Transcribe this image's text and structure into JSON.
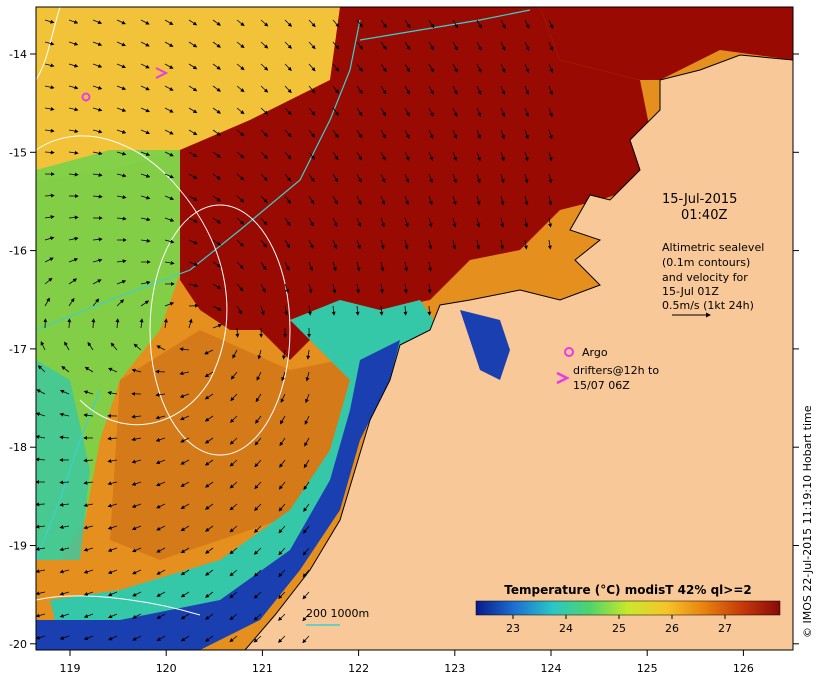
{
  "map": {
    "lon_ticks": [
      "119",
      "120",
      "121",
      "122",
      "123",
      "124",
      "125",
      "126"
    ],
    "lat_ticks": [
      "-14",
      "-15",
      "-16",
      "-17",
      "-18",
      "-19",
      "-20"
    ],
    "timestamp": {
      "date": "15-Jul-2015",
      "time": "01:40Z"
    },
    "altimetry": {
      "line1": "Altimetric sealevel",
      "line2": "(0.1m contours)",
      "line3": "and velocity for",
      "line4": "15-Jul 01Z",
      "scale": "0.5m/s (1kt 24h)"
    },
    "argo_label": "Argo",
    "drifters": {
      "line1": "drifters@12h to",
      "line2": "15/07 06Z"
    },
    "isobath_label": "200  1000m",
    "credit": "© IMOS 22-Jul-2015 11:19:10 Hobart time",
    "colorbar": {
      "title": "Temperature (°C) modisT 42% ql>=2",
      "ticks": [
        "23",
        "24",
        "25",
        "26",
        "27"
      ],
      "stops": [
        "#0a1a8c",
        "#1b6fd0",
        "#28c6c8",
        "#4fd46a",
        "#c9e82a",
        "#f5c52a",
        "#e8820e",
        "#c63a0a",
        "#8a0a0a"
      ]
    },
    "colors": {
      "land": "#f9c899",
      "hot": "#990a02",
      "warm": "#e5901e",
      "mild": "#f2c338",
      "cool": "#7dd24a",
      "cold": "#1a3fb0",
      "contour": "#ffffff",
      "isobath": "#3ad0d0",
      "marker": "#e83ae8"
    }
  }
}
